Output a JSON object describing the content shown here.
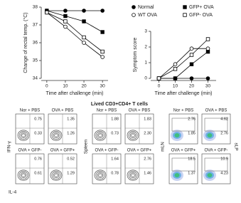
{
  "chart_data": [
    {
      "type": "line",
      "y_label": "Change of rectal temp. (°C)",
      "x_label": "Time after challenge (min)",
      "x": [
        0,
        10,
        20,
        30
      ],
      "xlim": [
        -3,
        33
      ],
      "xticks": [
        0,
        10,
        20,
        30
      ],
      "ylim": [
        34,
        38
      ],
      "yticks": [
        34,
        35,
        36,
        37,
        38
      ],
      "series": [
        {
          "name": "Normal",
          "color": "#000000",
          "marker": "circle",
          "filled": true,
          "values": [
            37.8,
            37.8,
            37.8,
            37.8
          ]
        },
        {
          "name": "GFP+ OVA",
          "color": "#000000",
          "marker": "square",
          "filled": true,
          "values": [
            37.8,
            37.5,
            37.2,
            36.6
          ]
        },
        {
          "name": "WT OVA",
          "color": "#000000",
          "marker": "circle",
          "filled": false,
          "values": [
            37.7,
            36.9,
            36.0,
            35.2
          ]
        },
        {
          "name": "GFP- OVA",
          "color": "#000000",
          "marker": "square",
          "filled": false,
          "values": [
            37.7,
            37.2,
            36.3,
            35.5
          ]
        }
      ]
    },
    {
      "type": "line",
      "y_label": "Symptom score",
      "x_label": "Time after challenge (min)",
      "x": [
        0,
        10,
        20,
        30
      ],
      "xlim": [
        -5,
        35
      ],
      "xticks": [
        0,
        10,
        20,
        30
      ],
      "ylim": [
        0,
        3
      ],
      "yticks": [
        0,
        1,
        2,
        3
      ],
      "legend": "top",
      "series": [
        {
          "name": "Normal",
          "color": "#000000",
          "marker": "circle",
          "filled": true,
          "values": [
            0,
            0,
            0,
            0
          ]
        },
        {
          "name": "GFP+ OVA",
          "color": "#000000",
          "marker": "square",
          "filled": true,
          "values": [
            0,
            0,
            0.9,
            1.7
          ]
        },
        {
          "name": "WT OVA",
          "color": "#000000",
          "marker": "circle",
          "filled": false,
          "values": [
            0,
            0.9,
            1.9,
            1.9
          ]
        },
        {
          "name": "GFP- OVA",
          "color": "#000000",
          "marker": "square",
          "filled": false,
          "values": [
            0,
            0.6,
            1.5,
            2.5
          ]
        }
      ]
    }
  ],
  "flow": {
    "title": "Lived CD3+CD4+ T cells",
    "blocks": [
      {
        "y_label": "IFN-γ",
        "x_label": "IL-4",
        "colored": false,
        "panels": [
          {
            "title": "Nor + PBS",
            "upper": "0.75",
            "lower": "0.33"
          },
          {
            "title": "OVA + PBS",
            "upper": "1.35",
            "lower": "1.26"
          },
          {
            "title": "OVA + GFP-",
            "upper": "0.76",
            "lower": "0.61"
          },
          {
            "title": "OVA + GFP+",
            "upper": "0.52",
            "lower": "1.29"
          }
        ]
      },
      {
        "y_label": "Spleen",
        "colored": false,
        "panels": [
          {
            "title": "Nor + PBS",
            "upper": "1.88",
            "lower": "0.73"
          },
          {
            "title": "OVA + PBS",
            "upper": "1.83",
            "lower": "2.30"
          },
          {
            "title": "OVA + GFP-",
            "upper": "1.64",
            "lower": "0.78"
          },
          {
            "title": "OVA + GFP+",
            "upper": "2.76",
            "lower": "1.46"
          }
        ]
      },
      {
        "y_label": "mLN",
        "y2_label": "sLP",
        "colored": true,
        "panels": [
          {
            "title": "Nor + PBS",
            "upper": "2.76",
            "lower": "1.85"
          },
          {
            "title": "OVA + PBS",
            "upper": "4.62",
            "lower": "2.76"
          },
          {
            "title": "OVA + GFP+",
            "upper": "18.5",
            "lower": "1.37"
          },
          {
            "title": "OVA + GFP-",
            "upper": "10.9",
            "lower": "4.23"
          }
        ]
      }
    ]
  }
}
